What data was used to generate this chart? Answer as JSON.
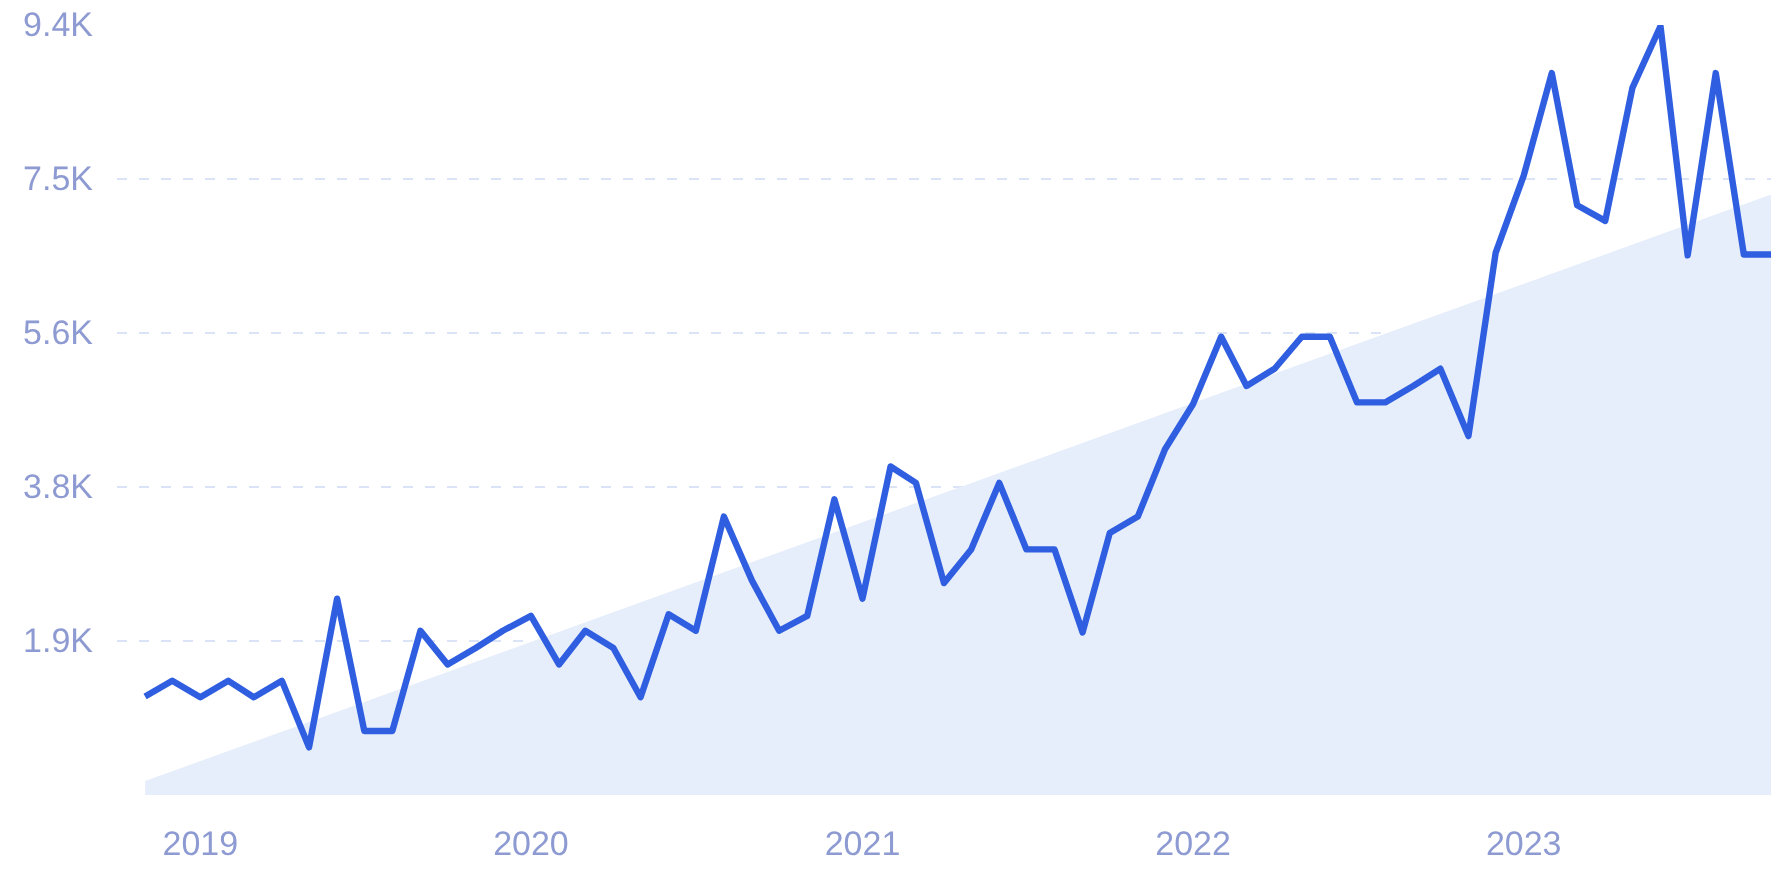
{
  "chart_data": {
    "type": "line",
    "x": [
      "2018-11",
      "2018-12",
      "2019-01",
      "2019-02",
      "2019-03",
      "2019-04",
      "2019-05",
      "2019-06",
      "2019-07",
      "2019-08",
      "2019-09",
      "2019-10",
      "2019-11",
      "2019-12",
      "2020-01",
      "2020-02",
      "2020-03",
      "2020-04",
      "2020-05",
      "2020-06",
      "2020-07",
      "2020-08",
      "2020-09",
      "2020-10",
      "2020-11",
      "2020-12",
      "2021-01",
      "2021-02",
      "2021-03",
      "2021-04",
      "2021-05",
      "2021-06",
      "2021-07",
      "2021-08",
      "2021-09",
      "2021-10",
      "2021-11",
      "2021-12",
      "2022-01",
      "2022-02",
      "2022-03",
      "2022-04",
      "2022-05",
      "2022-06",
      "2022-07",
      "2022-08",
      "2022-09",
      "2022-10",
      "2022-11",
      "2022-12",
      "2023-01",
      "2023-02",
      "2023-03",
      "2023-04",
      "2023-05",
      "2023-06",
      "2023-07",
      "2023-08",
      "2023-09",
      "2023-10"
    ],
    "series": [
      {
        "type": "area",
        "color": "#e6eefb",
        "x": [
          "2018-11",
          "2023-10"
        ],
        "values": [
          170,
          7310
        ]
      },
      {
        "color": "#2f5ee0",
        "values": [
          1200,
          1390,
          1190,
          1390,
          1190,
          1390,
          580,
          2390,
          780,
          780,
          2000,
          1590,
          1790,
          2000,
          2180,
          1590,
          2000,
          1790,
          1190,
          2200,
          2000,
          3390,
          2610,
          2000,
          2180,
          3600,
          2390,
          4000,
          3800,
          2580,
          2990,
          3800,
          2990,
          2990,
          1980,
          3190,
          3390,
          4210,
          4760,
          5580,
          4980,
          5190,
          5580,
          5580,
          4780,
          4780,
          4980,
          5190,
          4370,
          6600,
          7540,
          8790,
          7180,
          6990,
          8610,
          9360,
          6570,
          8790,
          6580,
          6580
        ]
      }
    ],
    "xlim": [
      "2018-10",
      "2023-10"
    ],
    "xticks": [
      {
        "value": "2019-01",
        "label": "2019"
      },
      {
        "value": "2020-01",
        "label": "2020"
      },
      {
        "value": "2021-01",
        "label": "2021"
      },
      {
        "value": "2022-01",
        "label": "2022"
      },
      {
        "value": "2023-01",
        "label": "2023"
      }
    ],
    "ylim": [
      0,
      9375
    ],
    "yticks": [
      {
        "value": 1875,
        "label": "1.9K"
      },
      {
        "value": 3750,
        "label": "3.8K"
      },
      {
        "value": 5625,
        "label": "5.6K"
      },
      {
        "value": 7500,
        "label": "7.5K"
      },
      {
        "value": 9375,
        "label": "9.4K"
      }
    ],
    "grid": "y",
    "line_style": "solid"
  }
}
